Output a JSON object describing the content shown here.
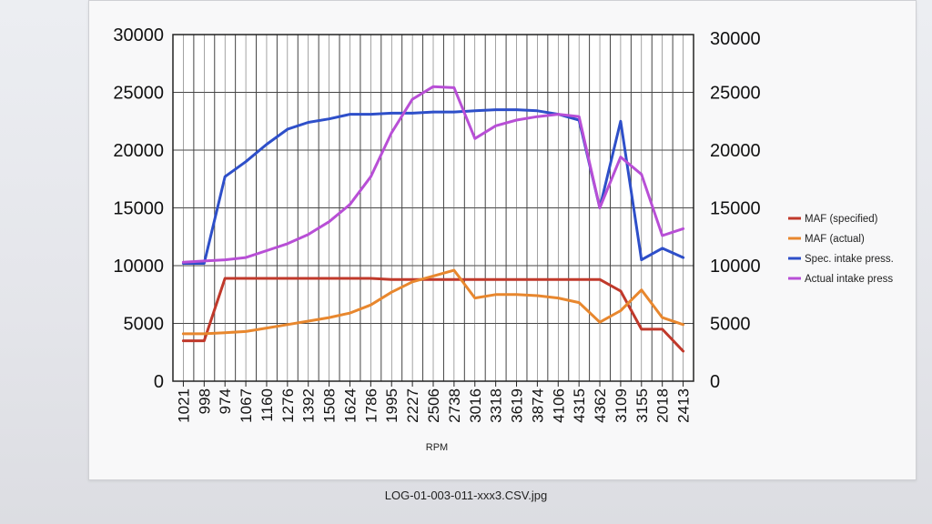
{
  "caption": "LOG-01-003-011-xxx3.CSV.jpg",
  "chart_data": {
    "type": "line",
    "xlabel": "RPM",
    "ylim": [
      0,
      30000
    ],
    "y_ticks_left": [
      "0",
      "5000",
      "10000",
      "15000",
      "20000",
      "25000",
      "30000"
    ],
    "y_ticks_right": [
      "0",
      "5000",
      "10000",
      "15000",
      "20000",
      "25000",
      "30000"
    ],
    "grid": true,
    "legend_position": "right",
    "categories": [
      "1021",
      "998",
      "974",
      "1067",
      "1160",
      "1276",
      "1392",
      "1508",
      "1624",
      "1786",
      "1995",
      "2227",
      "2506",
      "2738",
      "3016",
      "3318",
      "3619",
      "3874",
      "4106",
      "4315",
      "4362",
      "3109",
      "3155",
      "2018",
      "2413"
    ],
    "series": [
      {
        "name": "MAF (specified)",
        "color": "#c0392b",
        "values": [
          3500,
          3500,
          8900,
          8900,
          8900,
          8900,
          8900,
          8900,
          8900,
          8900,
          8800,
          8800,
          8800,
          8800,
          8800,
          8800,
          8800,
          8800,
          8800,
          8800,
          8800,
          7800,
          4500,
          4500,
          2600
        ]
      },
      {
        "name": "MAF (actual)",
        "color": "#e8872e",
        "values": [
          4100,
          4100,
          4200,
          4300,
          4600,
          4900,
          5200,
          5500,
          5900,
          6600,
          7700,
          8600,
          9100,
          9600,
          7200,
          7500,
          7500,
          7400,
          7200,
          6800,
          5100,
          6100,
          7900,
          5500,
          4900
        ]
      },
      {
        "name": "Spec. intake press.",
        "color": "#2e4fc9",
        "values": [
          10200,
          10200,
          17700,
          19000,
          20500,
          21800,
          22400,
          22700,
          23100,
          23100,
          23200,
          23200,
          23300,
          23300,
          23400,
          23500,
          23500,
          23400,
          23100,
          22600,
          15000,
          22500,
          10500,
          11500,
          10700
        ]
      },
      {
        "name": "Actual intake press",
        "color": "#b84fd6",
        "values": [
          10300,
          10400,
          10500,
          10700,
          11300,
          11900,
          12700,
          13800,
          15300,
          17700,
          21500,
          24400,
          25500,
          25400,
          21000,
          22100,
          22600,
          22900,
          23100,
          22900,
          15000,
          19400,
          17900,
          12600,
          13200
        ]
      }
    ]
  }
}
